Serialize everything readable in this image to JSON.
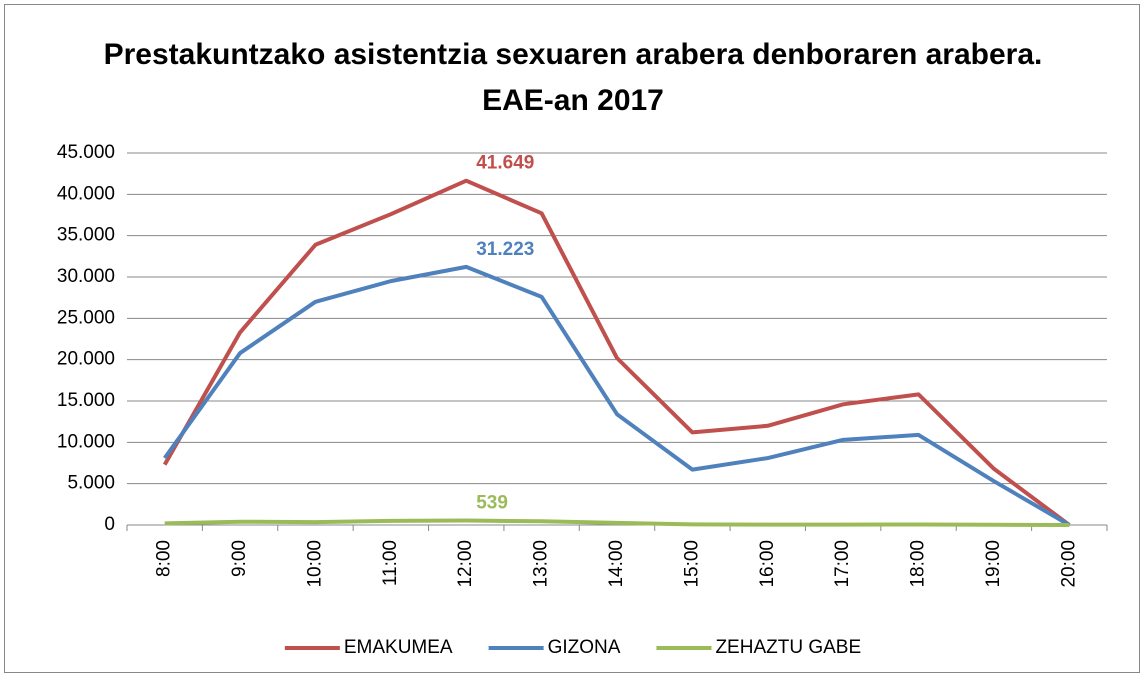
{
  "chart_data": {
    "type": "line",
    "title": "Prestakuntzako asistentzia sexuaren arabera denboraren arabera. EAE-an 2017",
    "categories": [
      "8:00",
      "9:00",
      "10:00",
      "11:00",
      "12:00",
      "13:00",
      "14:00",
      "15:00",
      "16:00",
      "17:00",
      "18:00",
      "19:00",
      "20:00"
    ],
    "series": [
      {
        "name": "EMAKUMEA",
        "color": "#c0504d",
        "values": [
          7300,
          23300,
          33900,
          37600,
          41649,
          37700,
          20200,
          11200,
          12000,
          14600,
          15800,
          6800,
          0
        ],
        "value_labels": [
          null,
          null,
          null,
          null,
          "41.649",
          null,
          null,
          null,
          null,
          null,
          null,
          null,
          null
        ]
      },
      {
        "name": "GIZONA",
        "color": "#4f81bd",
        "values": [
          8100,
          20800,
          27000,
          29500,
          31223,
          27600,
          13400,
          6700,
          8100,
          10300,
          10900,
          5300,
          0
        ],
        "value_labels": [
          null,
          null,
          null,
          null,
          "31.223",
          null,
          null,
          null,
          null,
          null,
          null,
          null,
          null
        ]
      },
      {
        "name": "ZEHAZTU GABE",
        "color": "#9bbb59",
        "values": [
          200,
          400,
          350,
          500,
          539,
          450,
          250,
          80,
          50,
          50,
          60,
          30,
          0
        ],
        "value_labels": [
          null,
          null,
          null,
          null,
          "539",
          null,
          null,
          null,
          null,
          null,
          null,
          null,
          null
        ]
      }
    ],
    "ylim": [
      0,
      45000
    ],
    "yticks": [
      0,
      {
        "value": 5000,
        "label": "5.000"
      },
      {
        "value": 10000,
        "label": "10.000"
      },
      {
        "value": 15000,
        "label": "15.000"
      },
      {
        "value": 20000,
        "label": "20.000"
      },
      {
        "value": 25000,
        "label": "25.000"
      },
      {
        "value": 30000,
        "label": "30.000"
      },
      {
        "value": 35000,
        "label": "35.000"
      },
      {
        "value": 40000,
        "label": "40.000"
      },
      {
        "value": 45000,
        "label": "45.000"
      }
    ],
    "grid": true,
    "legend": "bottom"
  }
}
